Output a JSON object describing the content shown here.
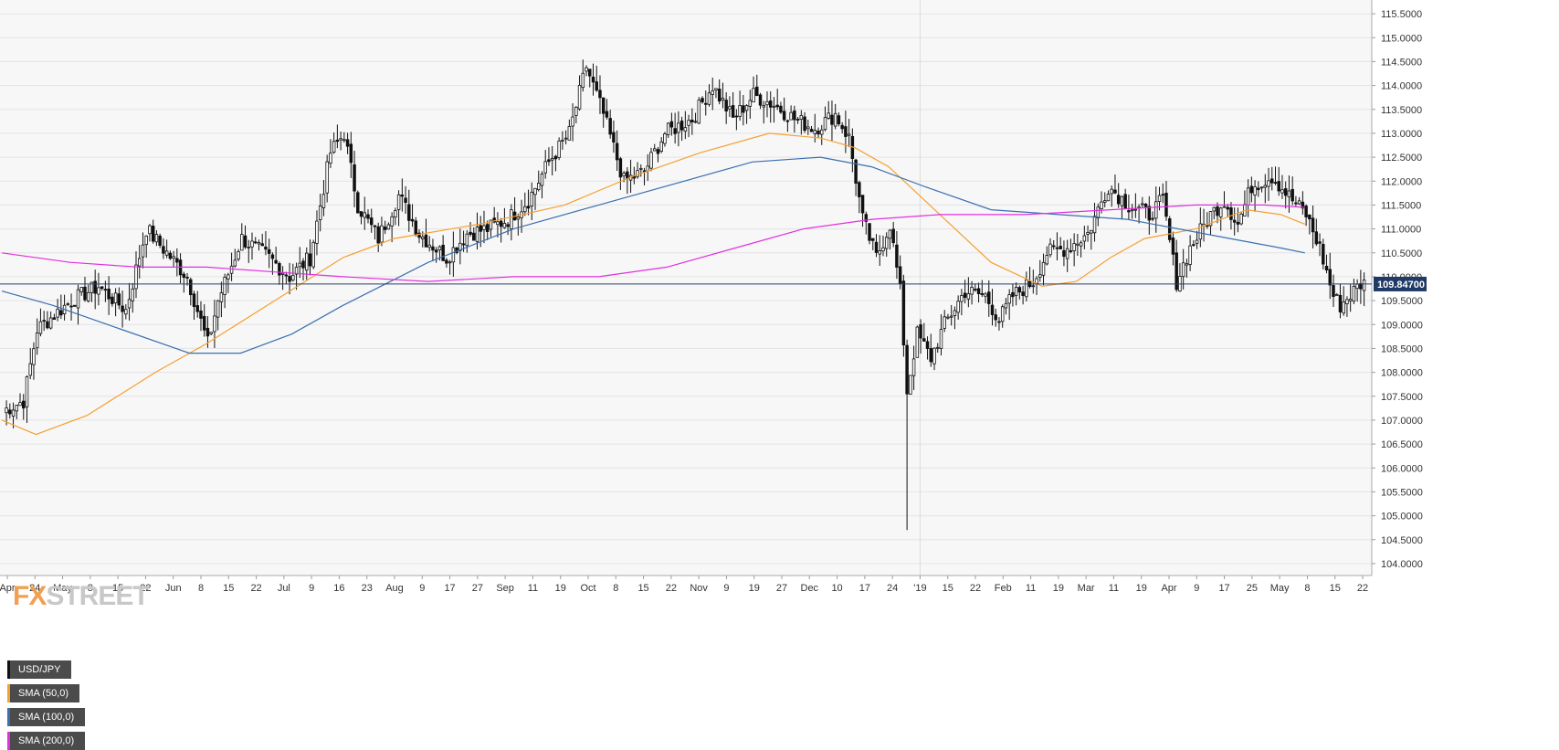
{
  "chart_data": {
    "type": "candlestick",
    "title": "USD/JPY",
    "instrument": "USD/JPY",
    "timeframe": "daily",
    "ylim": [
      104.0,
      115.5
    ],
    "y_ticks": [
      "104.0000",
      "104.5000",
      "105.0000",
      "105.5000",
      "106.0000",
      "106.5000",
      "107.0000",
      "107.5000",
      "108.0000",
      "108.5000",
      "109.0000",
      "109.5000",
      "110.0000",
      "110.5000",
      "111.0000",
      "111.5000",
      "112.0000",
      "112.5000",
      "113.0000",
      "113.5000",
      "114.0000",
      "114.5000",
      "115.0000",
      "115.5000"
    ],
    "x_ticks": [
      "Apr",
      "24",
      "May",
      "8",
      "15",
      "22",
      "Jun",
      "8",
      "15",
      "22",
      "Jul",
      "9",
      "16",
      "23",
      "Aug",
      "9",
      "17",
      "27",
      "Sep",
      "11",
      "19",
      "Oct",
      "8",
      "15",
      "22",
      "Nov",
      "9",
      "19",
      "27",
      "Dec",
      "10",
      "17",
      "24",
      "'19",
      "15",
      "22",
      "Feb",
      "11",
      "19",
      "Mar",
      "11",
      "19",
      "Apr",
      "9",
      "17",
      "25",
      "May",
      "8",
      "15",
      "22"
    ],
    "last_price": "109.84700",
    "last_price_value": 109.847,
    "grid": true,
    "legend_position": "top-left",
    "price_path": [
      [
        0,
        107.2
      ],
      [
        6,
        107.4
      ],
      [
        10,
        108.9
      ],
      [
        20,
        109.5
      ],
      [
        28,
        109.8
      ],
      [
        36,
        109.3
      ],
      [
        42,
        111.0
      ],
      [
        48,
        110.5
      ],
      [
        54,
        110.0
      ],
      [
        60,
        108.6
      ],
      [
        63,
        109.5
      ],
      [
        70,
        110.8
      ],
      [
        78,
        110.4
      ],
      [
        84,
        110.0
      ],
      [
        90,
        110.4
      ],
      [
        96,
        112.6
      ],
      [
        100,
        113.0
      ],
      [
        104,
        111.5
      ],
      [
        110,
        110.8
      ],
      [
        116,
        111.7
      ],
      [
        122,
        110.9
      ],
      [
        130,
        110.4
      ],
      [
        136,
        110.9
      ],
      [
        142,
        111.0
      ],
      [
        148,
        111.2
      ],
      [
        154,
        111.6
      ],
      [
        160,
        112.4
      ],
      [
        166,
        113.0
      ],
      [
        171,
        114.4
      ],
      [
        176,
        113.4
      ],
      [
        182,
        112.0
      ],
      [
        188,
        112.2
      ],
      [
        194,
        113.0
      ],
      [
        202,
        113.3
      ],
      [
        208,
        114.0
      ],
      [
        214,
        113.3
      ],
      [
        220,
        113.8
      ],
      [
        226,
        113.6
      ],
      [
        232,
        113.3
      ],
      [
        238,
        113.1
      ],
      [
        244,
        113.4
      ],
      [
        248,
        112.9
      ],
      [
        252,
        111.2
      ],
      [
        256,
        110.4
      ],
      [
        260,
        111.1
      ],
      [
        263,
        109.7
      ],
      [
        265,
        107.6
      ],
      [
        268,
        108.8
      ],
      [
        272,
        108.3
      ],
      [
        276,
        109.0
      ],
      [
        282,
        109.7
      ],
      [
        288,
        109.6
      ],
      [
        292,
        109.1
      ],
      [
        296,
        109.6
      ],
      [
        302,
        109.9
      ],
      [
        306,
        110.5
      ],
      [
        312,
        110.6
      ],
      [
        318,
        110.9
      ],
      [
        324,
        111.9
      ],
      [
        330,
        111.5
      ],
      [
        336,
        111.3
      ],
      [
        340,
        111.6
      ],
      [
        344,
        109.9
      ],
      [
        348,
        110.6
      ],
      [
        354,
        111.3
      ],
      [
        358,
        111.6
      ],
      [
        362,
        111.1
      ],
      [
        366,
        111.9
      ],
      [
        372,
        112.1
      ],
      [
        378,
        111.6
      ],
      [
        382,
        111.3
      ],
      [
        386,
        110.6
      ],
      [
        390,
        109.6
      ],
      [
        392,
        109.4
      ],
      [
        396,
        109.7
      ],
      [
        398,
        109.85
      ]
    ],
    "series": [
      {
        "name": "SMA (50,0)",
        "color": "#f5a030",
        "points": [
          [
            0,
            107.0
          ],
          [
            10,
            106.7
          ],
          [
            25,
            107.1
          ],
          [
            45,
            108.0
          ],
          [
            60,
            108.6
          ],
          [
            80,
            109.5
          ],
          [
            100,
            110.4
          ],
          [
            115,
            110.8
          ],
          [
            140,
            111.1
          ],
          [
            165,
            111.5
          ],
          [
            185,
            112.1
          ],
          [
            205,
            112.6
          ],
          [
            225,
            113.0
          ],
          [
            240,
            112.9
          ],
          [
            250,
            112.7
          ],
          [
            260,
            112.3
          ],
          [
            275,
            111.3
          ],
          [
            290,
            110.3
          ],
          [
            305,
            109.8
          ],
          [
            315,
            109.9
          ],
          [
            325,
            110.4
          ],
          [
            335,
            110.8
          ],
          [
            350,
            111.0
          ],
          [
            365,
            111.4
          ],
          [
            375,
            111.3
          ],
          [
            382,
            111.1
          ]
        ]
      },
      {
        "name": "SMA (100,0)",
        "color": "#3a6fb0",
        "points": [
          [
            0,
            109.7
          ],
          [
            15,
            109.4
          ],
          [
            35,
            108.9
          ],
          [
            55,
            108.4
          ],
          [
            70,
            108.4
          ],
          [
            85,
            108.8
          ],
          [
            100,
            109.4
          ],
          [
            125,
            110.3
          ],
          [
            150,
            111.0
          ],
          [
            175,
            111.5
          ],
          [
            200,
            112.0
          ],
          [
            220,
            112.4
          ],
          [
            240,
            112.5
          ],
          [
            255,
            112.3
          ],
          [
            270,
            111.9
          ],
          [
            290,
            111.4
          ],
          [
            310,
            111.3
          ],
          [
            330,
            111.2
          ],
          [
            345,
            111.0
          ],
          [
            360,
            110.8
          ],
          [
            375,
            110.6
          ],
          [
            382,
            110.5
          ]
        ]
      },
      {
        "name": "SMA (200,0)",
        "color": "#e030e0",
        "points": [
          [
            0,
            110.5
          ],
          [
            20,
            110.3
          ],
          [
            40,
            110.2
          ],
          [
            60,
            110.2
          ],
          [
            80,
            110.1
          ],
          [
            100,
            110.0
          ],
          [
            125,
            109.9
          ],
          [
            150,
            110.0
          ],
          [
            175,
            110.0
          ],
          [
            195,
            110.2
          ],
          [
            215,
            110.6
          ],
          [
            235,
            111.0
          ],
          [
            255,
            111.2
          ],
          [
            275,
            111.3
          ],
          [
            300,
            111.3
          ],
          [
            325,
            111.4
          ],
          [
            350,
            111.5
          ],
          [
            370,
            111.5
          ],
          [
            382,
            111.45
          ]
        ]
      }
    ]
  }
}
